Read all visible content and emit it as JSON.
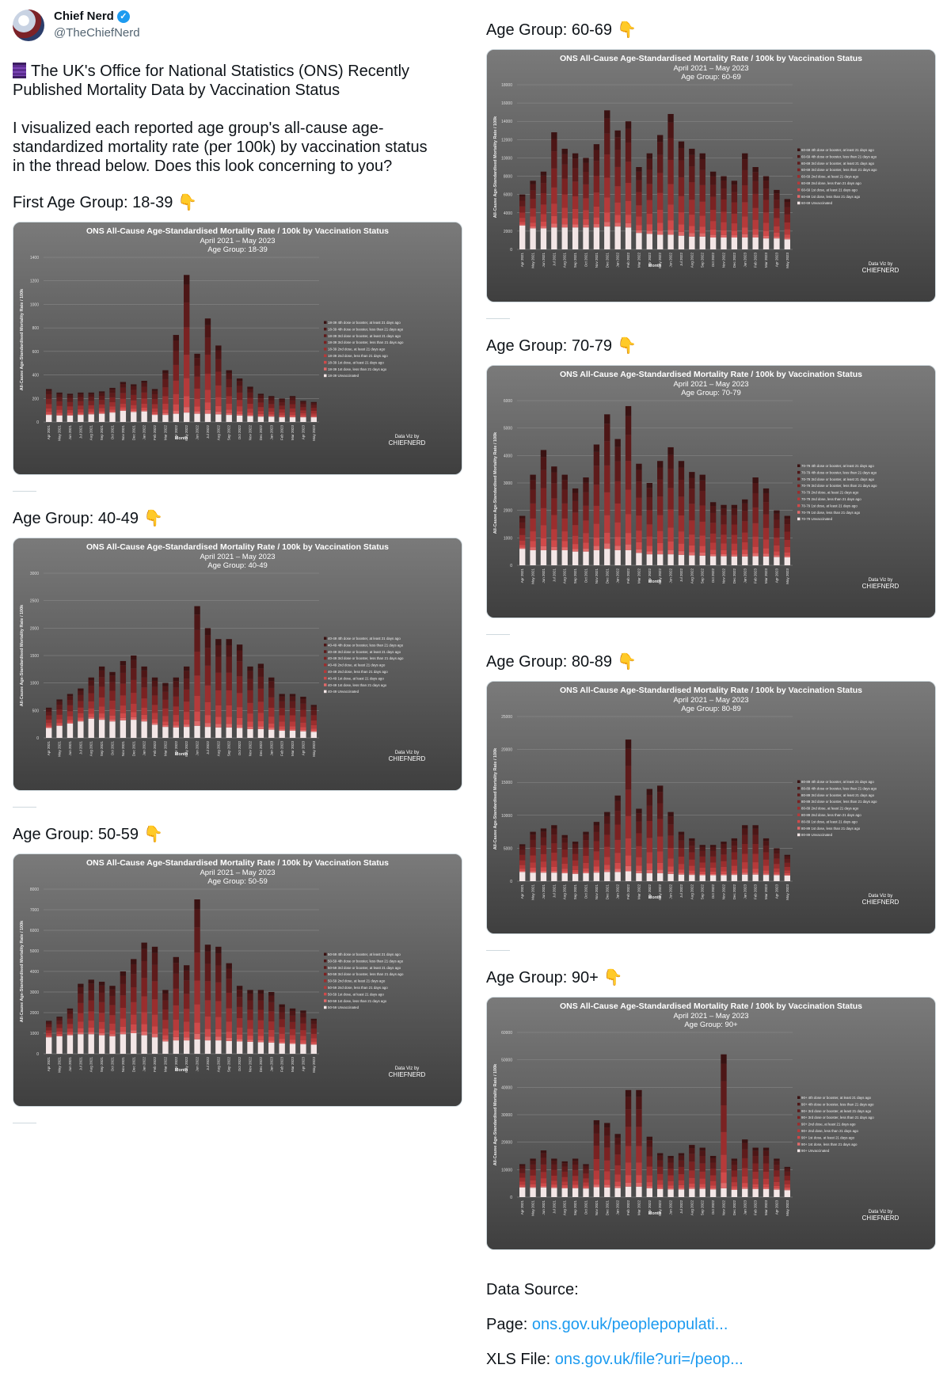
{
  "tweet": {
    "author_name": "Chief Nerd",
    "author_handle": "@TheChiefNerd",
    "intro_line1": "The UK's Office for National Statistics (ONS) Recently",
    "intro_line2": "Published Mortality Data by Vaccination Status",
    "body_line1": "I visualized each reported age group's all-cause age-",
    "body_line2": "standardized mortality rate (per 100k) by vaccination status",
    "body_line3": "in the thread below. Does this look concerning to you?"
  },
  "chart_common": {
    "title": "ONS All-Cause Age-Standardised Mortality Rate / 100k by Vaccination Status",
    "subtitle": "April 2021 – May 2023",
    "xlabel": "Month",
    "ylabel": "All-Cause Age-Standardised Mortality Rate / 100k",
    "credit_line1": "Data Viz by",
    "credit_line2": "CHIEFNERD",
    "categories": [
      "Apr 2021",
      "May 2021",
      "Jun 2021",
      "Jul 2021",
      "Aug 2021",
      "Sep 2021",
      "Oct 2021",
      "Nov 2021",
      "Dec 2021",
      "Jan 2022",
      "Feb 2022",
      "Mar 2022",
      "Apr 2022",
      "May 2022",
      "Jun 2022",
      "Jul 2022",
      "Aug 2022",
      "Sep 2022",
      "Oct 2022",
      "Nov 2022",
      "Dec 2022",
      "Jan 2023",
      "Feb 2023",
      "Mar 2023",
      "Apr 2023",
      "May 2023"
    ],
    "legend_suffixes": [
      "4th dose or booster, at least 21 days ago",
      "4th dose or booster, less than 21 days ago",
      "3rd dose or booster, at least 21 days ago",
      "3rd dose or booster, less than 21 days ago",
      "2nd dose, at least 21 days ago",
      "2nd dose, less than 21 days ago",
      "1st dose, at least 21 days ago",
      "1st dose, less than 21 days ago",
      "Unvaccinated"
    ],
    "colors": [
      "#3a1212",
      "#4d1616",
      "#5e1b1b",
      "#7a2222",
      "#9a2e2e",
      "#b53a3a",
      "#cf4a4a",
      "#e06a6a",
      "#f3e6e6"
    ]
  },
  "data_source": {
    "label": "Data Source:",
    "page_prefix": "Page: ",
    "page_link": "ons.gov.uk/peoplepopulati...",
    "xls_prefix": "XLS File: ",
    "xls_link": "ons.gov.uk/file?uri=/peop..."
  },
  "chart_data": [
    {
      "type": "bar",
      "heading": "First Age Group: 18-39",
      "group_label": "Age Group: 18-39",
      "legend_prefix": "18-39",
      "ylim": [
        0,
        1400
      ],
      "yticks": [
        0,
        200,
        400,
        600,
        800,
        1000,
        1200,
        1400
      ],
      "totals": [
        280,
        250,
        240,
        250,
        250,
        260,
        290,
        340,
        320,
        350,
        280,
        440,
        740,
        1250,
        580,
        880,
        650,
        440,
        370,
        300,
        240,
        220,
        200,
        220,
        180,
        170
      ],
      "unvacc": [
        60,
        55,
        55,
        60,
        65,
        70,
        80,
        95,
        85,
        90,
        60,
        60,
        70,
        80,
        70,
        70,
        65,
        60,
        55,
        50,
        45,
        45,
        40,
        40,
        40,
        40
      ]
    },
    {
      "type": "bar",
      "heading": "Age Group: 40-49",
      "group_label": "Age Group: 40-49",
      "legend_prefix": "40-49",
      "ylim": [
        0,
        3000
      ],
      "yticks": [
        0,
        500,
        1000,
        1500,
        2000,
        2500,
        3000
      ],
      "totals": [
        550,
        700,
        800,
        900,
        1100,
        1300,
        1200,
        1400,
        1500,
        1300,
        1100,
        1000,
        1100,
        1300,
        2400,
        2000,
        1800,
        1800,
        1700,
        1300,
        1350,
        1100,
        800,
        800,
        750,
        600
      ],
      "unvacc": [
        180,
        220,
        260,
        300,
        350,
        330,
        300,
        320,
        330,
        300,
        240,
        200,
        190,
        200,
        220,
        200,
        190,
        190,
        180,
        160,
        160,
        150,
        130,
        130,
        120,
        110
      ]
    },
    {
      "type": "bar",
      "heading": "Age Group: 50-59",
      "group_label": "Age Group: 50-59",
      "legend_prefix": "50-59",
      "ylim": [
        0,
        8000
      ],
      "yticks": [
        0,
        1000,
        2000,
        3000,
        4000,
        5000,
        6000,
        7000,
        8000
      ],
      "totals": [
        1600,
        1800,
        2200,
        3400,
        3600,
        3500,
        3300,
        4000,
        4600,
        5400,
        5200,
        3100,
        4700,
        4300,
        7500,
        5300,
        5200,
        4400,
        3300,
        3100,
        3100,
        3000,
        2400,
        2200,
        2100,
        1700
      ],
      "unvacc": [
        800,
        850,
        900,
        950,
        950,
        900,
        850,
        950,
        1000,
        900,
        800,
        600,
        650,
        650,
        700,
        650,
        650,
        620,
        600,
        580,
        560,
        540,
        500,
        480,
        460,
        440
      ]
    },
    {
      "type": "bar",
      "heading": "Age Group: 60-69",
      "group_label": "Age Group: 60-69",
      "legend_prefix": "60-69",
      "ylim": [
        0,
        18000
      ],
      "yticks": [
        0,
        2000,
        4000,
        6000,
        8000,
        10000,
        12000,
        14000,
        16000,
        18000
      ],
      "totals": [
        6000,
        7500,
        8500,
        12800,
        11000,
        10500,
        10000,
        11500,
        15200,
        13000,
        14000,
        9000,
        10500,
        12500,
        14800,
        11800,
        11000,
        10500,
        8500,
        8000,
        7500,
        10500,
        9000,
        8000,
        6500,
        5500
      ],
      "unvacc": [
        2600,
        2300,
        2300,
        2400,
        2400,
        2400,
        2400,
        2400,
        2500,
        2500,
        2400,
        1800,
        1700,
        1600,
        1600,
        1500,
        1400,
        1400,
        1300,
        1300,
        1300,
        1300,
        1300,
        1200,
        1200,
        1100
      ]
    },
    {
      "type": "bar",
      "heading": "Age Group: 70-79",
      "group_label": "Age Group: 70-79",
      "legend_prefix": "70-79",
      "ylim": [
        0,
        6000
      ],
      "yticks": [
        0,
        1000,
        2000,
        3000,
        4000,
        5000,
        6000
      ],
      "totals": [
        1800,
        3300,
        4200,
        3600,
        3300,
        2800,
        3200,
        4400,
        5500,
        4600,
        5800,
        3700,
        3000,
        3800,
        4300,
        3800,
        3400,
        3300,
        2300,
        2200,
        2200,
        2400,
        3200,
        2800,
        2000,
        1800
      ],
      "unvacc": [
        600,
        550,
        550,
        550,
        550,
        500,
        500,
        550,
        600,
        550,
        550,
        450,
        400,
        400,
        400,
        380,
        360,
        350,
        330,
        330,
        320,
        320,
        330,
        320,
        300,
        290
      ]
    },
    {
      "type": "bar",
      "heading": "Age Group: 80-89",
      "group_label": "Age Group: 80-89",
      "legend_prefix": "80-89",
      "ylim": [
        0,
        25000
      ],
      "yticks": [
        0,
        5000,
        10000,
        15000,
        20000,
        25000
      ],
      "totals": [
        5600,
        7500,
        8000,
        8500,
        7000,
        6000,
        7500,
        9000,
        10500,
        13000,
        21500,
        11000,
        14000,
        14500,
        10500,
        7500,
        6500,
        5500,
        5500,
        6000,
        6500,
        8500,
        8500,
        6500,
        5000,
        4000
      ],
      "unvacc": [
        1400,
        1300,
        1300,
        1300,
        1200,
        1100,
        1200,
        1300,
        1400,
        1400,
        1500,
        1200,
        1200,
        1200,
        1100,
        1000,
        950,
        900,
        900,
        900,
        950,
        1000,
        1000,
        950,
        900,
        850
      ]
    },
    {
      "type": "bar",
      "heading": "Age Group: 90+",
      "group_label": "Age Group: 90+",
      "legend_prefix": "90+",
      "ylim": [
        0,
        60000
      ],
      "yticks": [
        0,
        10000,
        20000,
        30000,
        40000,
        50000,
        60000
      ],
      "totals": [
        12000,
        14000,
        17000,
        14000,
        13000,
        14000,
        12000,
        28000,
        27000,
        23000,
        39000,
        39000,
        22000,
        16000,
        15000,
        16000,
        19000,
        18000,
        15000,
        52000,
        14000,
        21000,
        18000,
        18000,
        14000,
        11000
      ],
      "unvacc": [
        3500,
        3400,
        3500,
        3300,
        3200,
        3200,
        3100,
        3600,
        3500,
        3300,
        3800,
        3800,
        3200,
        2900,
        2800,
        2800,
        3000,
        3000,
        2800,
        3200,
        2600,
        3000,
        2900,
        2900,
        2700,
        2500
      ]
    }
  ]
}
